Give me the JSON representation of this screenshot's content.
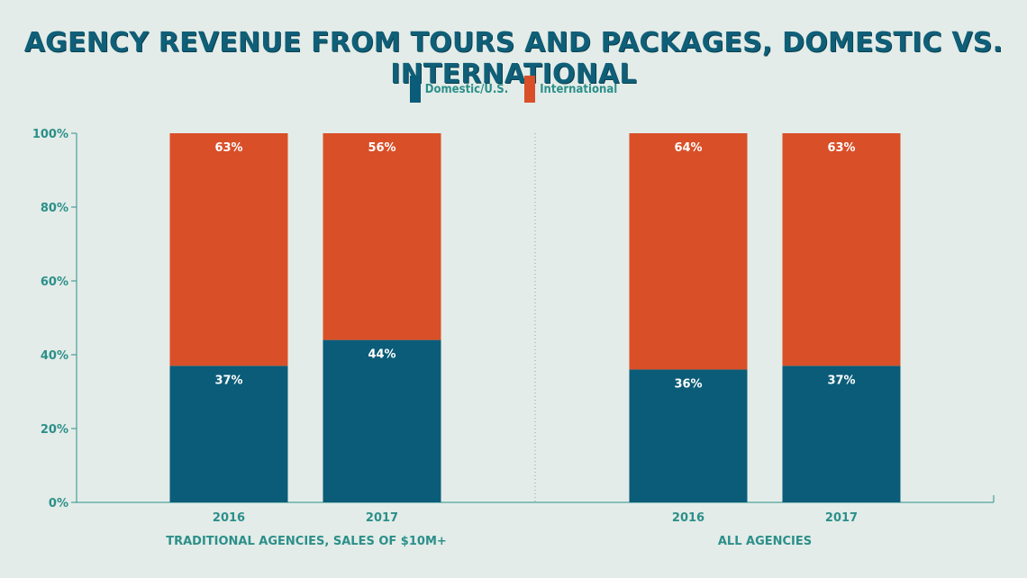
{
  "colors": {
    "domestic": "#0b5c78",
    "international": "#d94f28",
    "axis": "#2c8f8a",
    "background": "#e3ece8"
  },
  "chart_data": {
    "type": "bar",
    "stacked": true,
    "title": "AGENCY REVENUE FROM TOURS AND PACKAGES, DOMESTIC VS. INTERNATIONAL",
    "legend": {
      "placement": "top-center",
      "entries": [
        "Domestic/U.S.",
        "International"
      ]
    },
    "ylim": [
      0,
      100
    ],
    "yticks": [
      "0%",
      "20%",
      "40%",
      "60%",
      "80%",
      "100%"
    ],
    "grid": false,
    "groups": [
      {
        "label": "TRADITIONAL AGENCIES, SALES OF $10M+",
        "categories": [
          "2016",
          "2017"
        ]
      },
      {
        "label": "ALL AGENCIES",
        "categories": [
          "2016",
          "2017"
        ]
      }
    ],
    "series": [
      {
        "name": "Domestic/U.S.",
        "values": [
          37,
          44,
          36,
          37
        ],
        "labels": [
          "37%",
          "44%",
          "36%",
          "37%"
        ]
      },
      {
        "name": "International",
        "values": [
          63,
          56,
          64,
          63
        ],
        "labels": [
          "63%",
          "56%",
          "64%",
          "63%"
        ]
      }
    ]
  }
}
